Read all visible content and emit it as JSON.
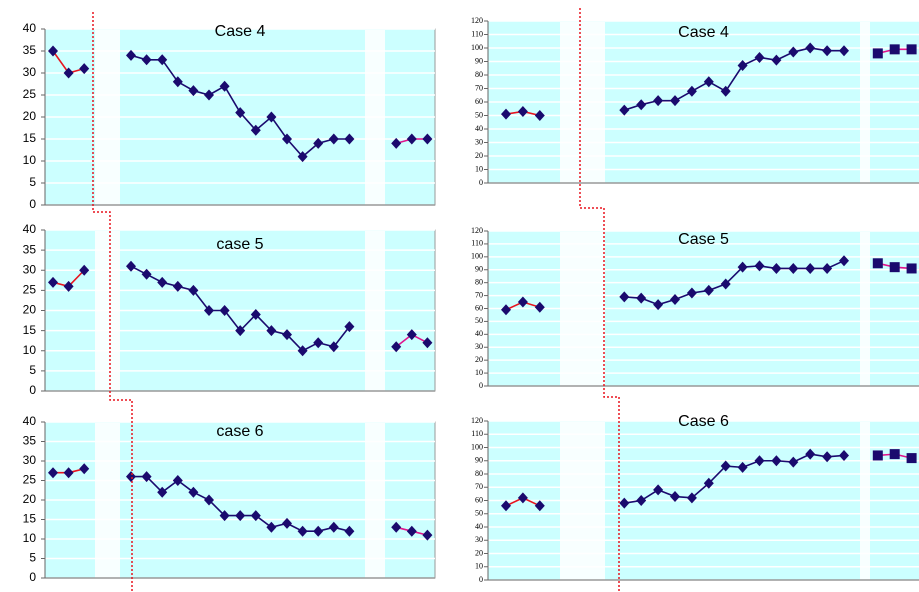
{
  "chart_data": [
    {
      "type": "line",
      "title": "Case 4",
      "ylim": [
        0,
        40
      ],
      "yticks": [
        0,
        5,
        10,
        15,
        20,
        25,
        30,
        35,
        40
      ],
      "grid": true,
      "background": "#ccffff",
      "series": [
        {
          "color": "#e8141e",
          "marker_color": "#1a0a6e",
          "marker": "diamond",
          "values": [
            35,
            30,
            31,
            null,
            null,
            null,
            null,
            null,
            null,
            null,
            null,
            null,
            null,
            null,
            null,
            null,
            null,
            null,
            null,
            null,
            null,
            null,
            null,
            null,
            null
          ]
        },
        {
          "color": "#1a0a6e",
          "marker_color": "#1a0a6e",
          "marker": "diamond",
          "values": [
            null,
            null,
            null,
            null,
            null,
            34,
            33,
            33,
            28,
            26,
            25,
            27,
            21,
            17,
            20,
            15,
            11,
            14,
            15,
            15,
            null,
            null,
            null,
            null,
            null
          ]
        },
        {
          "color": "#e0148c",
          "marker_color": "#1a0a6e",
          "marker": "diamond",
          "values": [
            null,
            null,
            null,
            null,
            null,
            null,
            null,
            null,
            null,
            null,
            null,
            null,
            null,
            null,
            null,
            null,
            null,
            null,
            null,
            null,
            null,
            null,
            14,
            15,
            15
          ]
        }
      ]
    },
    {
      "type": "line",
      "title": "case 5",
      "ylim": [
        0,
        40
      ],
      "yticks": [
        0,
        5,
        10,
        15,
        20,
        25,
        30,
        35,
        40
      ],
      "grid": true,
      "background": "#ccffff",
      "series": [
        {
          "color": "#e8141e",
          "marker_color": "#1a0a6e",
          "marker": "diamond",
          "values": [
            27,
            26,
            30,
            null,
            null,
            null,
            null,
            null,
            null,
            null,
            null,
            null,
            null,
            null,
            null,
            null,
            null,
            null,
            null,
            null,
            null,
            null,
            null,
            null,
            null
          ]
        },
        {
          "color": "#1a0a6e",
          "marker_color": "#1a0a6e",
          "marker": "diamond",
          "values": [
            null,
            null,
            null,
            null,
            null,
            31,
            29,
            27,
            26,
            25,
            20,
            20,
            15,
            19,
            15,
            14,
            10,
            12,
            11,
            16,
            null,
            null,
            null,
            null,
            null
          ]
        },
        {
          "color": "#e0148c",
          "marker_color": "#1a0a6e",
          "marker": "diamond",
          "values": [
            null,
            null,
            null,
            null,
            null,
            null,
            null,
            null,
            null,
            null,
            null,
            null,
            null,
            null,
            null,
            null,
            null,
            null,
            null,
            null,
            null,
            null,
            11,
            14,
            12
          ]
        }
      ]
    },
    {
      "type": "line",
      "title": "case 6",
      "ylim": [
        0,
        40
      ],
      "yticks": [
        0,
        5,
        10,
        15,
        20,
        25,
        30,
        35,
        40
      ],
      "grid": true,
      "background": "#ccffff",
      "series": [
        {
          "color": "#e8141e",
          "marker_color": "#1a0a6e",
          "marker": "diamond",
          "values": [
            27,
            27,
            28,
            null,
            null,
            null,
            null,
            null,
            null,
            null,
            null,
            null,
            null,
            null,
            null,
            null,
            null,
            null,
            null,
            null,
            null,
            null,
            null,
            null,
            null
          ]
        },
        {
          "color": "#1a0a6e",
          "marker_color": "#1a0a6e",
          "marker": "diamond",
          "values": [
            null,
            null,
            null,
            null,
            null,
            26,
            26,
            22,
            25,
            22,
            20,
            16,
            16,
            16,
            13,
            14,
            12,
            12,
            13,
            12,
            null,
            null,
            null,
            null,
            null
          ]
        },
        {
          "color": "#e0148c",
          "marker_color": "#1a0a6e",
          "marker": "diamond",
          "values": [
            null,
            null,
            null,
            null,
            null,
            null,
            null,
            null,
            null,
            null,
            null,
            null,
            null,
            null,
            null,
            null,
            null,
            null,
            null,
            null,
            null,
            null,
            13,
            12,
            11
          ]
        }
      ]
    },
    {
      "type": "line",
      "title": "Case 4",
      "ylim": [
        0,
        120
      ],
      "yticks": [
        0,
        10,
        20,
        30,
        40,
        50,
        60,
        70,
        80,
        90,
        100,
        110,
        120
      ],
      "grid": true,
      "background": "#ccffff",
      "series": [
        {
          "color": "#e8141e",
          "marker_color": "#1a0a6e",
          "marker": "diamond",
          "values": [
            51,
            53,
            50,
            null,
            null,
            null,
            null,
            null,
            null,
            null,
            null,
            null,
            null,
            null,
            null,
            null,
            null,
            null,
            null,
            null,
            null,
            null,
            null,
            null,
            null
          ]
        },
        {
          "color": "#1a0a6e",
          "marker_color": "#1a0a6e",
          "marker": "diamond",
          "values": [
            null,
            null,
            null,
            null,
            null,
            null,
            null,
            54,
            58,
            61,
            61,
            68,
            75,
            68,
            87,
            93,
            91,
            97,
            100,
            98,
            98,
            null,
            null,
            null,
            null
          ]
        },
        {
          "color": "#e0148c",
          "marker_color": "#1a0a6e",
          "marker": "square",
          "values": [
            null,
            null,
            null,
            null,
            null,
            null,
            null,
            null,
            null,
            null,
            null,
            null,
            null,
            null,
            null,
            null,
            null,
            null,
            null,
            null,
            null,
            null,
            96,
            99,
            99
          ]
        }
      ]
    },
    {
      "type": "line",
      "title": "Case 5",
      "ylim": [
        0,
        120
      ],
      "yticks": [
        0,
        10,
        20,
        30,
        40,
        50,
        60,
        70,
        80,
        90,
        100,
        110,
        120
      ],
      "grid": true,
      "background": "#ccffff",
      "series": [
        {
          "color": "#e8141e",
          "marker_color": "#1a0a6e",
          "marker": "diamond",
          "values": [
            59,
            65,
            61,
            null,
            null,
            null,
            null,
            null,
            null,
            null,
            null,
            null,
            null,
            null,
            null,
            null,
            null,
            null,
            null,
            null,
            null,
            null,
            null,
            null,
            null
          ]
        },
        {
          "color": "#1a0a6e",
          "marker_color": "#1a0a6e",
          "marker": "diamond",
          "values": [
            null,
            null,
            null,
            null,
            null,
            null,
            null,
            69,
            68,
            63,
            67,
            72,
            74,
            79,
            92,
            93,
            91,
            91,
            91,
            91,
            97,
            null,
            null,
            null,
            null
          ]
        },
        {
          "color": "#e0148c",
          "marker_color": "#1a0a6e",
          "marker": "square",
          "values": [
            null,
            null,
            null,
            null,
            null,
            null,
            null,
            null,
            null,
            null,
            null,
            null,
            null,
            null,
            null,
            null,
            null,
            null,
            null,
            null,
            null,
            null,
            95,
            92,
            91
          ]
        }
      ]
    },
    {
      "type": "line",
      "title": "Case 6",
      "ylim": [
        0,
        120
      ],
      "yticks": [
        0,
        10,
        20,
        30,
        40,
        50,
        60,
        70,
        80,
        90,
        100,
        110,
        120
      ],
      "grid": true,
      "background": "#ccffff",
      "series": [
        {
          "color": "#e8141e",
          "marker_color": "#1a0a6e",
          "marker": "diamond",
          "values": [
            56,
            62,
            56,
            null,
            null,
            null,
            null,
            null,
            null,
            null,
            null,
            null,
            null,
            null,
            null,
            null,
            null,
            null,
            null,
            null,
            null,
            null,
            null,
            null,
            null
          ]
        },
        {
          "color": "#1a0a6e",
          "marker_color": "#1a0a6e",
          "marker": "diamond",
          "values": [
            null,
            null,
            null,
            null,
            null,
            null,
            null,
            58,
            60,
            68,
            63,
            62,
            73,
            86,
            85,
            90,
            90,
            89,
            95,
            93,
            94,
            null,
            null,
            null,
            null
          ]
        },
        {
          "color": "#e0148c",
          "marker_color": "#1a0a6e",
          "marker": "square",
          "values": [
            null,
            null,
            null,
            null,
            null,
            null,
            null,
            null,
            null,
            null,
            null,
            null,
            null,
            null,
            null,
            null,
            null,
            null,
            null,
            null,
            null,
            null,
            94,
            95,
            92
          ]
        }
      ]
    }
  ]
}
